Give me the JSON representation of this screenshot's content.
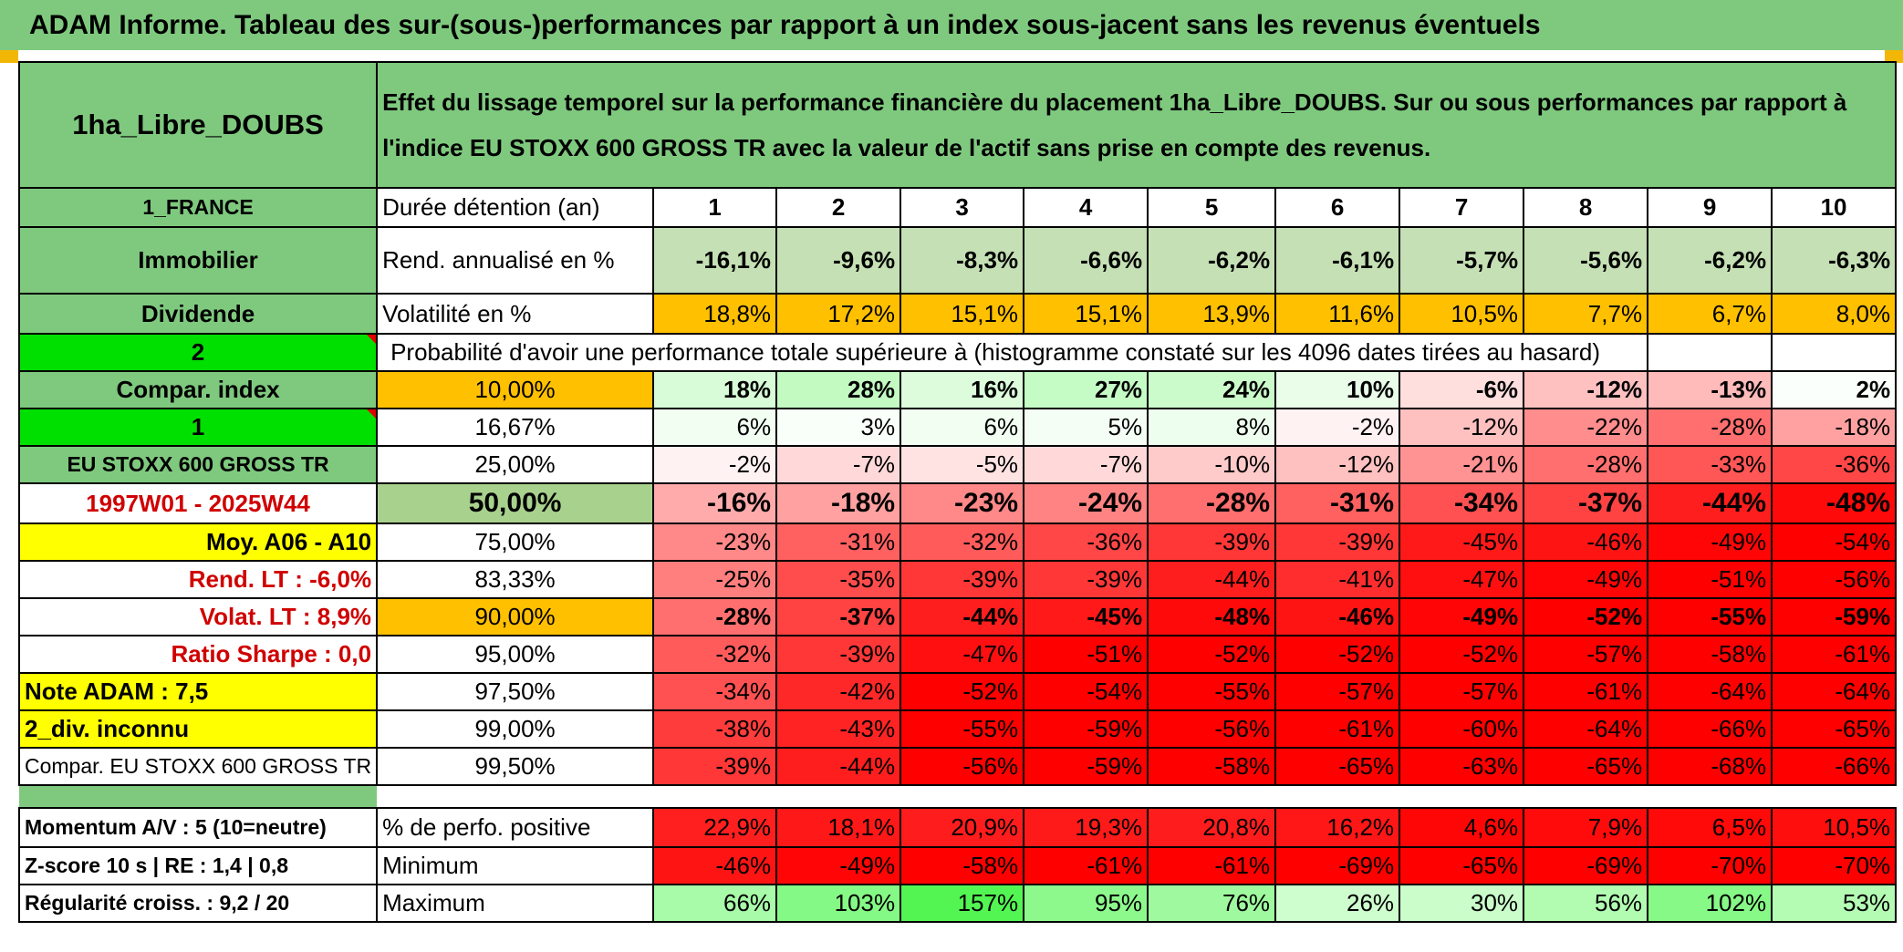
{
  "banner": "ADAM Informe. Tableau des sur-(sous-)performances par rapport à un index sous-jacent sans les revenus éventuels",
  "fund_name": "1ha_Libre_DOUBS",
  "description": "Effet du lissage temporel sur la performance financière du placement 1ha_Libre_DOUBS. Sur ou sous performances par rapport à l'indice EU STOXX 600 GROSS TR avec la valeur de l'actif sans prise en compte des revenus.",
  "colors": {
    "label_green": "#7fc97f",
    "bright_green": "#00e000",
    "orange": "#ffc000",
    "yellow": "#ffff00",
    "red_text": "#d00000"
  },
  "left_labels": {
    "country": "1_FRANCE",
    "category": "Immobilier",
    "type": "Dividende",
    "value_2": "2",
    "compar_index": "Compar. index",
    "value_1": "1",
    "index_name": "EU STOXX 600 GROSS TR",
    "period": "1997W01 - 2025W44",
    "moy": "Moy. A06 - A10",
    "rend_lt": "Rend. LT :   -6,0%",
    "volat_lt": "Volat. LT :   8,9%",
    "sharpe": "Ratio Sharpe :    0,0",
    "note": "Note ADAM : 7,5",
    "div": "2_div. inconnu",
    "compar": "Compar. EU STOXX 600 GROSS TR",
    "momentum": "Momentum A/V : 5 (10=neutre)",
    "zscore": "Z-score 10 s | RE : 1,4 | 0,8",
    "regularite": "Régularité croiss. : 9,2 / 20"
  },
  "header": {
    "label": "Durée détention (an)",
    "years": [
      "1",
      "2",
      "3",
      "4",
      "5",
      "6",
      "7",
      "8",
      "9",
      "10"
    ]
  },
  "rend": {
    "label": "Rend. annualisé en %",
    "values": [
      "-16,1%",
      "-9,6%",
      "-8,3%",
      "-6,6%",
      "-6,2%",
      "-6,1%",
      "-5,7%",
      "-5,6%",
      "-6,2%",
      "-6,3%"
    ]
  },
  "volat": {
    "label": "Volatilité en %",
    "values": [
      "18,8%",
      "17,2%",
      "15,1%",
      "15,1%",
      "13,9%",
      "11,6%",
      "10,5%",
      "7,7%",
      "6,7%",
      "8,0%"
    ]
  },
  "prob_title": "Probabilité d'avoir une performance totale supérieure à (histogramme constaté sur les 4096 dates tirées au hasard)",
  "quantiles": [
    {
      "label": "10,00%",
      "values": [
        "18%",
        "28%",
        "16%",
        "27%",
        "24%",
        "10%",
        "-6%",
        "-12%",
        "-13%",
        "2%"
      ]
    },
    {
      "label": "16,67%",
      "values": [
        "6%",
        "3%",
        "6%",
        "5%",
        "8%",
        "-2%",
        "-12%",
        "-22%",
        "-28%",
        "-18%"
      ]
    },
    {
      "label": "25,00%",
      "values": [
        "-2%",
        "-7%",
        "-5%",
        "-7%",
        "-10%",
        "-12%",
        "-21%",
        "-28%",
        "-33%",
        "-36%"
      ]
    },
    {
      "label": "50,00%",
      "values": [
        "-16%",
        "-18%",
        "-23%",
        "-24%",
        "-28%",
        "-31%",
        "-34%",
        "-37%",
        "-44%",
        "-48%"
      ]
    },
    {
      "label": "75,00%",
      "values": [
        "-23%",
        "-31%",
        "-32%",
        "-36%",
        "-39%",
        "-39%",
        "-45%",
        "-46%",
        "-49%",
        "-54%"
      ]
    },
    {
      "label": "83,33%",
      "values": [
        "-25%",
        "-35%",
        "-39%",
        "-39%",
        "-44%",
        "-41%",
        "-47%",
        "-49%",
        "-51%",
        "-56%"
      ]
    },
    {
      "label": "90,00%",
      "values": [
        "-28%",
        "-37%",
        "-44%",
        "-45%",
        "-48%",
        "-46%",
        "-49%",
        "-52%",
        "-55%",
        "-59%"
      ]
    },
    {
      "label": "95,00%",
      "values": [
        "-32%",
        "-39%",
        "-47%",
        "-51%",
        "-52%",
        "-52%",
        "-52%",
        "-57%",
        "-58%",
        "-61%"
      ]
    },
    {
      "label": "97,50%",
      "values": [
        "-34%",
        "-42%",
        "-52%",
        "-54%",
        "-55%",
        "-57%",
        "-57%",
        "-61%",
        "-64%",
        "-64%"
      ]
    },
    {
      "label": "99,00%",
      "values": [
        "-38%",
        "-43%",
        "-55%",
        "-59%",
        "-56%",
        "-61%",
        "-60%",
        "-64%",
        "-66%",
        "-65%"
      ]
    },
    {
      "label": "99,50%",
      "values": [
        "-39%",
        "-44%",
        "-56%",
        "-59%",
        "-58%",
        "-65%",
        "-63%",
        "-65%",
        "-68%",
        "-66%"
      ]
    }
  ],
  "summary": {
    "positive": {
      "label": "% de perfo. positive",
      "values": [
        "22,9%",
        "18,1%",
        "20,9%",
        "19,3%",
        "20,8%",
        "16,2%",
        "4,6%",
        "7,9%",
        "6,5%",
        "10,5%"
      ]
    },
    "minimum": {
      "label": "Minimum",
      "values": [
        "-46%",
        "-49%",
        "-58%",
        "-61%",
        "-61%",
        "-69%",
        "-65%",
        "-69%",
        "-70%",
        "-70%"
      ]
    },
    "maximum": {
      "label": "Maximum",
      "values": [
        "66%",
        "103%",
        "157%",
        "95%",
        "76%",
        "26%",
        "30%",
        "56%",
        "102%",
        "53%"
      ]
    }
  }
}
